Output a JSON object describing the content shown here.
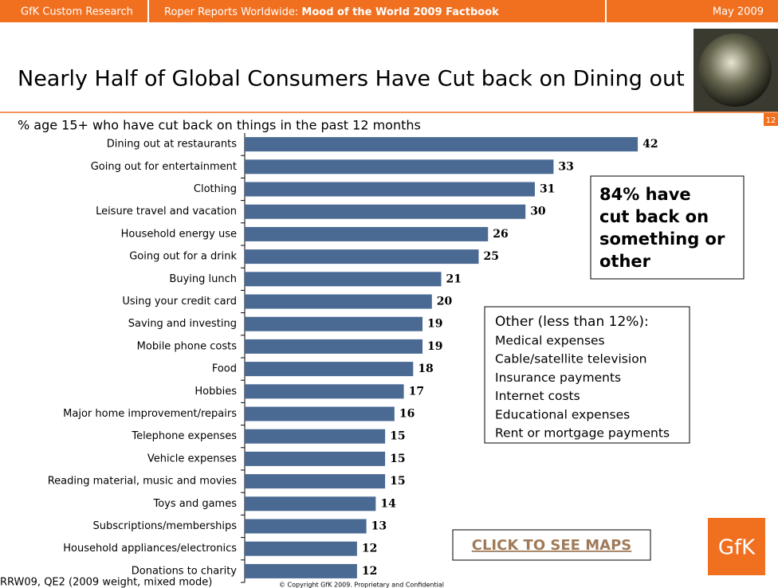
{
  "header": {
    "left": "GfK Custom Research",
    "middle_prefix": "Roper Reports Worldwide: ",
    "middle_bold": "Mood of the World 2009 Factbook",
    "right": "May 2009"
  },
  "title": "Nearly Half of Global Consumers Have Cut back on Dining out",
  "page_number": "12",
  "chart_data": {
    "type": "bar",
    "orientation": "horizontal",
    "subtitle": "% age 15+ who have cut back on things in the past 12 months",
    "color": "#4a6a94",
    "categories": [
      "Dining out at restaurants",
      "Going out for entertainment",
      "Clothing",
      "Leisure travel and vacation",
      "Household energy use",
      "Going out for a drink",
      "Buying lunch",
      "Using your credit card",
      "Saving and investing",
      "Mobile phone costs",
      "Food",
      "Hobbies",
      "Major home improvement/repairs",
      "Telephone expenses",
      "Vehicle expenses",
      "Reading material, music and movies",
      "Toys and games",
      "Subscriptions/memberships",
      "Household appliances/electronics",
      "Donations to charity"
    ],
    "values": [
      42,
      33,
      31,
      30,
      26,
      25,
      21,
      20,
      19,
      19,
      18,
      17,
      16,
      15,
      15,
      15,
      14,
      13,
      12,
      12
    ]
  },
  "callout": [
    "84% have",
    "cut back on",
    "something or",
    "other"
  ],
  "other_box": {
    "heading": "Other (less than 12%):",
    "items": [
      "Medical expenses",
      "Cable/satellite television",
      "Insurance payments",
      "Internet costs",
      "Educational expenses",
      "Rent or mortgage payments"
    ]
  },
  "link": "CLICK TO SEE MAPS",
  "logo": "GfK",
  "source": "RRW09, QE2 (2009 weight, mixed mode)",
  "copyright": "© Copyright GfK 2009.  Proprietary and Confidential"
}
